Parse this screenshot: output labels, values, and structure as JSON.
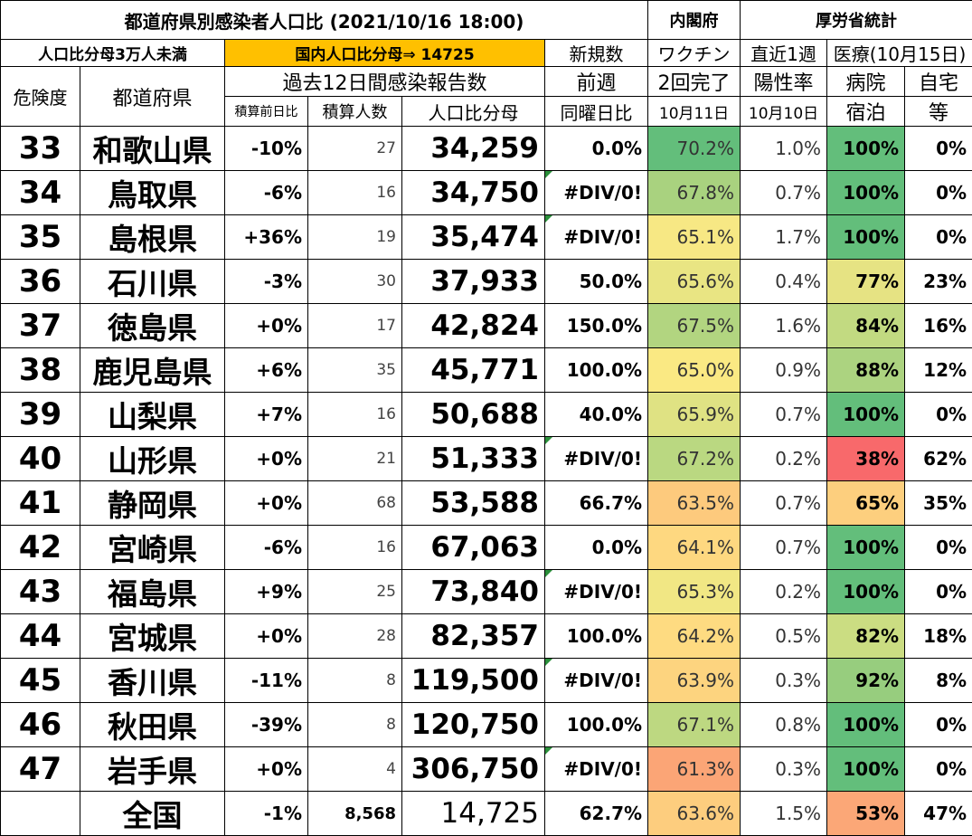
{
  "header": {
    "title": "都道府県別感染者人口比 (2021/10/16 18:00)",
    "cabinet": "内閣府",
    "mhlw": "厚労省統計"
  },
  "subheader": {
    "filter": "人口比分母3万人未満",
    "national_ratio": "国内人口比分母⇒ 14725",
    "new_cases": "新規数",
    "vaccine": "ワクチン",
    "recent_week": "直近1週",
    "medical": "医療(10月15日)"
  },
  "colheader": {
    "risk": "危険度",
    "prefecture": "都道府県",
    "past12": "過去12日間感染報告数",
    "prev_week": "前週",
    "second_dose": "2回完了",
    "positivity": "陽性率",
    "hospital_top": "病院",
    "home_top": "自宅",
    "cum_change": "積算前日比",
    "cum_count": "積算人数",
    "pop_ratio": "人口比分母",
    "same_day": "同曜日比",
    "vac_date": "10月11日",
    "pos_date": "10月10日",
    "hospital_bottom": "宿泊",
    "home_bottom": "等"
  },
  "rows": [
    {
      "rank": "33",
      "pref": "和歌山県",
      "change": "-10%",
      "count": "27",
      "pop": "34,259",
      "week": "0.0%",
      "flag": false,
      "vac": "70.2%",
      "vac_color": "#63be7b",
      "pos": "1.0%",
      "hosp": "100%",
      "hosp_color": "#63be7b",
      "home": "0%"
    },
    {
      "rank": "34",
      "pref": "鳥取県",
      "change": "-6%",
      "count": "16",
      "pop": "34,750",
      "week": "#DIV/0!",
      "flag": true,
      "vac": "67.8%",
      "vac_color": "#a9d27f",
      "pos": "0.7%",
      "hosp": "100%",
      "hosp_color": "#63be7b",
      "home": "0%"
    },
    {
      "rank": "35",
      "pref": "島根県",
      "change": "+36%",
      "count": "19",
      "pop": "35,474",
      "week": "#DIV/0!",
      "flag": true,
      "vac": "65.1%",
      "vac_color": "#f7e884",
      "pos": "1.7%",
      "hosp": "100%",
      "hosp_color": "#63be7b",
      "home": "0%"
    },
    {
      "rank": "36",
      "pref": "石川県",
      "change": "-3%",
      "count": "30",
      "pop": "37,933",
      "week": "50.0%",
      "flag": false,
      "vac": "65.6%",
      "vac_color": "#e9e583",
      "pos": "0.4%",
      "hosp": "77%",
      "hosp_color": "#e6e383",
      "home": "23%"
    },
    {
      "rank": "37",
      "pref": "徳島県",
      "change": "+0%",
      "count": "17",
      "pop": "42,824",
      "week": "150.0%",
      "flag": false,
      "vac": "67.5%",
      "vac_color": "#b2d580",
      "pos": "1.6%",
      "hosp": "84%",
      "hosp_color": "#c2da81",
      "home": "16%"
    },
    {
      "rank": "38",
      "pref": "鹿児島県",
      "change": "+6%",
      "count": "35",
      "pop": "45,771",
      "week": "100.0%",
      "flag": false,
      "vac": "65.0%",
      "vac_color": "#fae983",
      "pos": "0.9%",
      "hosp": "88%",
      "hosp_color": "#acd380",
      "home": "12%"
    },
    {
      "rank": "39",
      "pref": "山梨県",
      "change": "+7%",
      "count": "16",
      "pop": "50,688",
      "week": "40.0%",
      "flag": false,
      "vac": "65.9%",
      "vac_color": "#dfe283",
      "pos": "0.7%",
      "hosp": "100%",
      "hosp_color": "#63be7b",
      "home": "0%"
    },
    {
      "rank": "40",
      "pref": "山形県",
      "change": "+0%",
      "count": "21",
      "pop": "51,333",
      "week": "#DIV/0!",
      "flag": true,
      "vac": "67.2%",
      "vac_color": "#bad881",
      "pos": "0.2%",
      "hosp": "38%",
      "hosp_color": "#f8696b",
      "home": "62%"
    },
    {
      "rank": "41",
      "pref": "静岡県",
      "change": "+0%",
      "count": "68",
      "pop": "53,588",
      "week": "66.7%",
      "flag": false,
      "vac": "63.5%",
      "vac_color": "#fdca7d",
      "pos": "0.7%",
      "hosp": "65%",
      "hosp_color": "#fdcf7e",
      "home": "35%"
    },
    {
      "rank": "42",
      "pref": "宮崎県",
      "change": "-6%",
      "count": "16",
      "pop": "67,063",
      "week": "0.0%",
      "flag": false,
      "vac": "64.1%",
      "vac_color": "#fed880",
      "pos": "0.7%",
      "hosp": "100%",
      "hosp_color": "#63be7b",
      "home": "0%"
    },
    {
      "rank": "43",
      "pref": "福島県",
      "change": "+9%",
      "count": "25",
      "pop": "73,840",
      "week": "#DIV/0!",
      "flag": true,
      "vac": "65.3%",
      "vac_color": "#f1e784",
      "pos": "0.2%",
      "hosp": "100%",
      "hosp_color": "#63be7b",
      "home": "0%"
    },
    {
      "rank": "44",
      "pref": "宮城県",
      "change": "+0%",
      "count": "28",
      "pop": "82,357",
      "week": "100.0%",
      "flag": false,
      "vac": "64.2%",
      "vac_color": "#fedb81",
      "pos": "0.5%",
      "hosp": "82%",
      "hosp_color": "#cbdd82",
      "home": "18%"
    },
    {
      "rank": "45",
      "pref": "香川県",
      "change": "-11%",
      "count": "8",
      "pop": "119,500",
      "week": "#DIV/0!",
      "flag": true,
      "vac": "63.9%",
      "vac_color": "#fdd47f",
      "pos": "0.3%",
      "hosp": "92%",
      "hosp_color": "#97cd7e",
      "home": "8%"
    },
    {
      "rank": "46",
      "pref": "秋田県",
      "change": "-39%",
      "count": "8",
      "pop": "120,750",
      "week": "100.0%",
      "flag": false,
      "vac": "67.1%",
      "vac_color": "#bdd881",
      "pos": "0.8%",
      "hosp": "100%",
      "hosp_color": "#63be7b",
      "home": "0%"
    },
    {
      "rank": "47",
      "pref": "岩手県",
      "change": "+0%",
      "count": "4",
      "pop": "306,750",
      "week": "#DIV/0!",
      "flag": true,
      "vac": "61.3%",
      "vac_color": "#fba576",
      "pos": "0.3%",
      "hosp": "100%",
      "hosp_color": "#63be7b",
      "home": "0%"
    }
  ],
  "total": {
    "label": "全国",
    "change": "-1%",
    "count": "8,568",
    "pop": "14,725",
    "week": "62.7%",
    "vac": "63.6%",
    "vac_color": "#fdcd7e",
    "pos": "1.5%",
    "hosp": "53%",
    "hosp_color": "#fba777",
    "home": "47%"
  },
  "colors": {
    "national_ratio_bg": "#ffc000",
    "flag": "#2a8f3a"
  }
}
